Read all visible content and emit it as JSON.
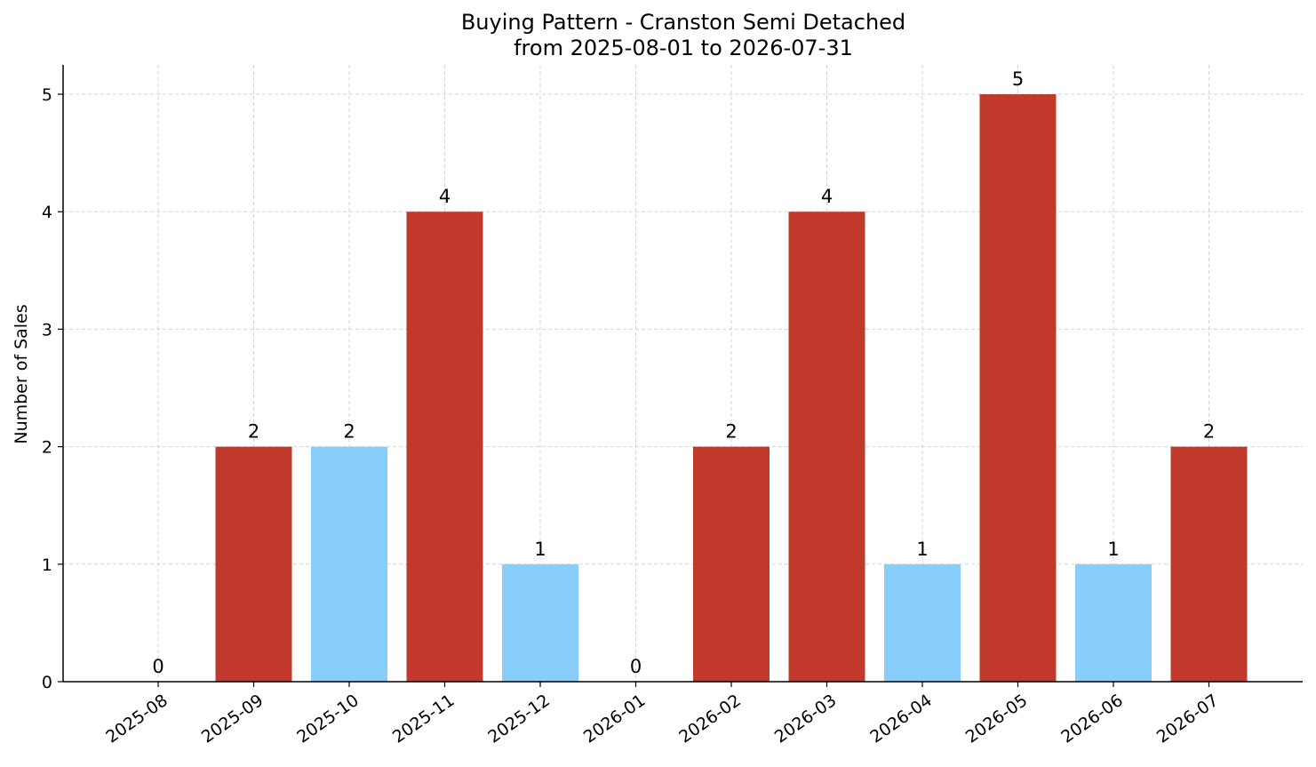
{
  "chart_data": {
    "type": "bar",
    "title": "Buying Pattern - Cranston Semi Detached",
    "subtitle": "from 2025-08-01 to 2026-07-31",
    "xlabel": "",
    "ylabel": "Number of Sales",
    "categories": [
      "2025-08",
      "2025-09",
      "2025-10",
      "2025-11",
      "2025-12",
      "2026-01",
      "2026-02",
      "2026-03",
      "2026-04",
      "2026-05",
      "2026-06",
      "2026-07"
    ],
    "values": [
      0,
      2,
      2,
      4,
      1,
      0,
      2,
      4,
      1,
      5,
      1,
      2
    ],
    "bar_colors": [
      "#c0392b",
      "#c0392b",
      "#87cefa",
      "#c0392b",
      "#87cefa",
      "#c0392b",
      "#c0392b",
      "#c0392b",
      "#87cefa",
      "#c0392b",
      "#87cefa",
      "#c0392b"
    ],
    "ylim": [
      0,
      5.25
    ],
    "yticks": [
      0,
      1,
      2,
      3,
      4,
      5
    ],
    "grid": true,
    "legend": "none"
  }
}
